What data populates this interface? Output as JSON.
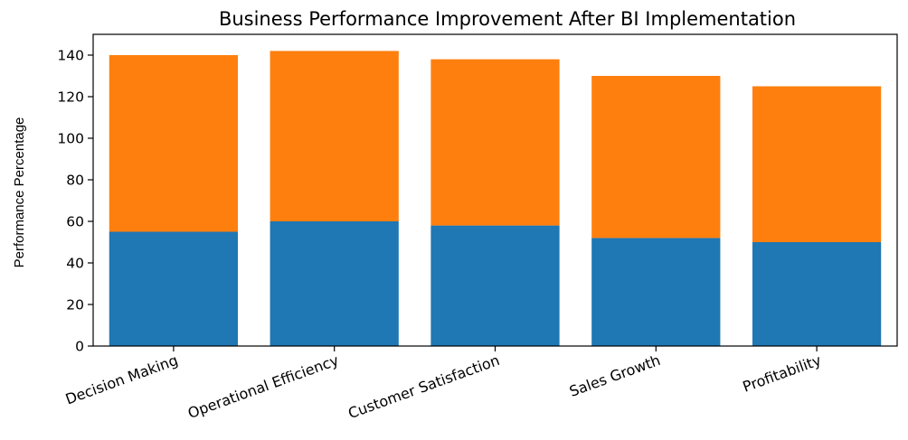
{
  "chart_data": {
    "type": "bar",
    "stacked": true,
    "title": "Business Performance Improvement After BI Implementation",
    "xlabel": "",
    "ylabel": "Performance Percentage",
    "ylim": [
      0,
      150
    ],
    "yticks": [
      0,
      20,
      40,
      60,
      80,
      100,
      120,
      140
    ],
    "grid": false,
    "legend": false,
    "categories": [
      "Decision Making",
      "Operational Efficiency",
      "Customer Satisfaction",
      "Sales Growth",
      "Profitability"
    ],
    "series": [
      {
        "color": "#1f77b4",
        "values": [
          55,
          60,
          58,
          52,
          50
        ]
      },
      {
        "color": "#ff7f0e",
        "values": [
          85,
          82,
          80,
          78,
          75
        ]
      }
    ]
  }
}
